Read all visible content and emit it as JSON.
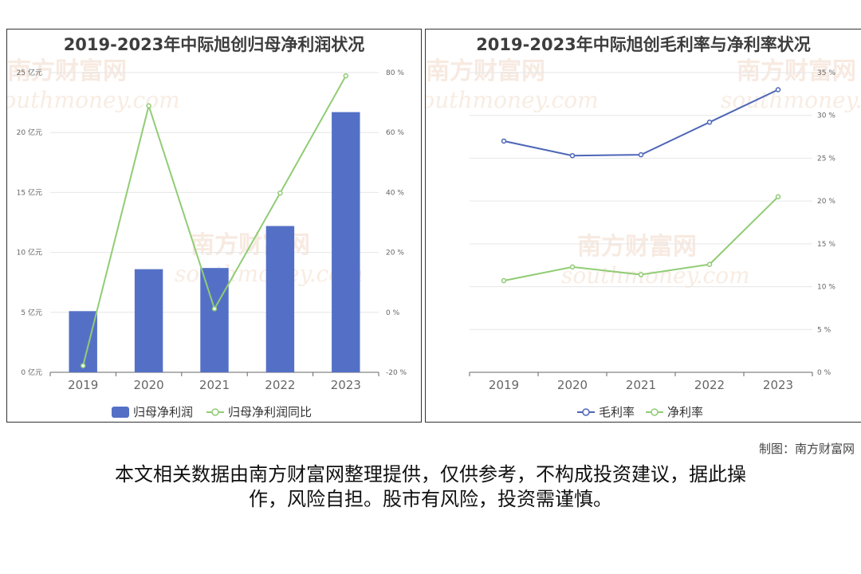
{
  "colors": {
    "bar": "#5470c6",
    "line_green": "#91cc75",
    "line_blue": "#4d66b8",
    "grid": "#e6e6e6",
    "axis": "#666666",
    "tick_text": "#666666"
  },
  "watermark": {
    "brand": "南方财富网",
    "url": "southmoney.com"
  },
  "credit": "制图：南方财富网",
  "disclaimer": {
    "line1": "本文相关数据由南方财富网整理提供，仅供参考，不构成投资建议，据此操",
    "line2": "作，风险自担。股市有风险，投资需谨慎。"
  },
  "chart_data": [
    {
      "type": "bar",
      "title": "2019-2023年中际旭创归母净利润状况",
      "categories": [
        "2019",
        "2020",
        "2021",
        "2022",
        "2023"
      ],
      "y_left": {
        "ticks": [
          "0 亿元",
          "5 亿元",
          "10 亿元",
          "15 亿元",
          "20 亿元",
          "25 亿元"
        ],
        "range": [
          0,
          25
        ]
      },
      "y_right": {
        "ticks": [
          "-20 %",
          "0 %",
          "20 %",
          "40 %",
          "60 %",
          "80 %"
        ],
        "range": [
          -20,
          80
        ]
      },
      "series": [
        {
          "name": "归母净利润",
          "kind": "bar",
          "axis": "left",
          "values": [
            5.1,
            8.6,
            8.7,
            12.2,
            21.7
          ]
        },
        {
          "name": "归母净利润同比",
          "kind": "line",
          "axis": "right",
          "values": [
            -17.8,
            68.9,
            1.2,
            39.8,
            78.9
          ]
        }
      ],
      "legend": "bottom-center",
      "grid": true
    },
    {
      "type": "line",
      "title": "2019-2023年中际旭创毛利率与净利率状况",
      "categories": [
        "2019",
        "2020",
        "2021",
        "2022",
        "2023"
      ],
      "y_right": {
        "ticks": [
          "0 %",
          "5 %",
          "10 %",
          "15 %",
          "20 %",
          "25 %",
          "30 %",
          "35 %"
        ],
        "range": [
          0,
          35
        ]
      },
      "series": [
        {
          "name": "毛利率",
          "kind": "line",
          "values": [
            27.0,
            25.3,
            25.4,
            29.2,
            33.0
          ]
        },
        {
          "name": "净利率",
          "kind": "line",
          "values": [
            10.7,
            12.3,
            11.4,
            12.6,
            20.5
          ]
        }
      ],
      "legend": "bottom-center",
      "grid": true
    }
  ]
}
